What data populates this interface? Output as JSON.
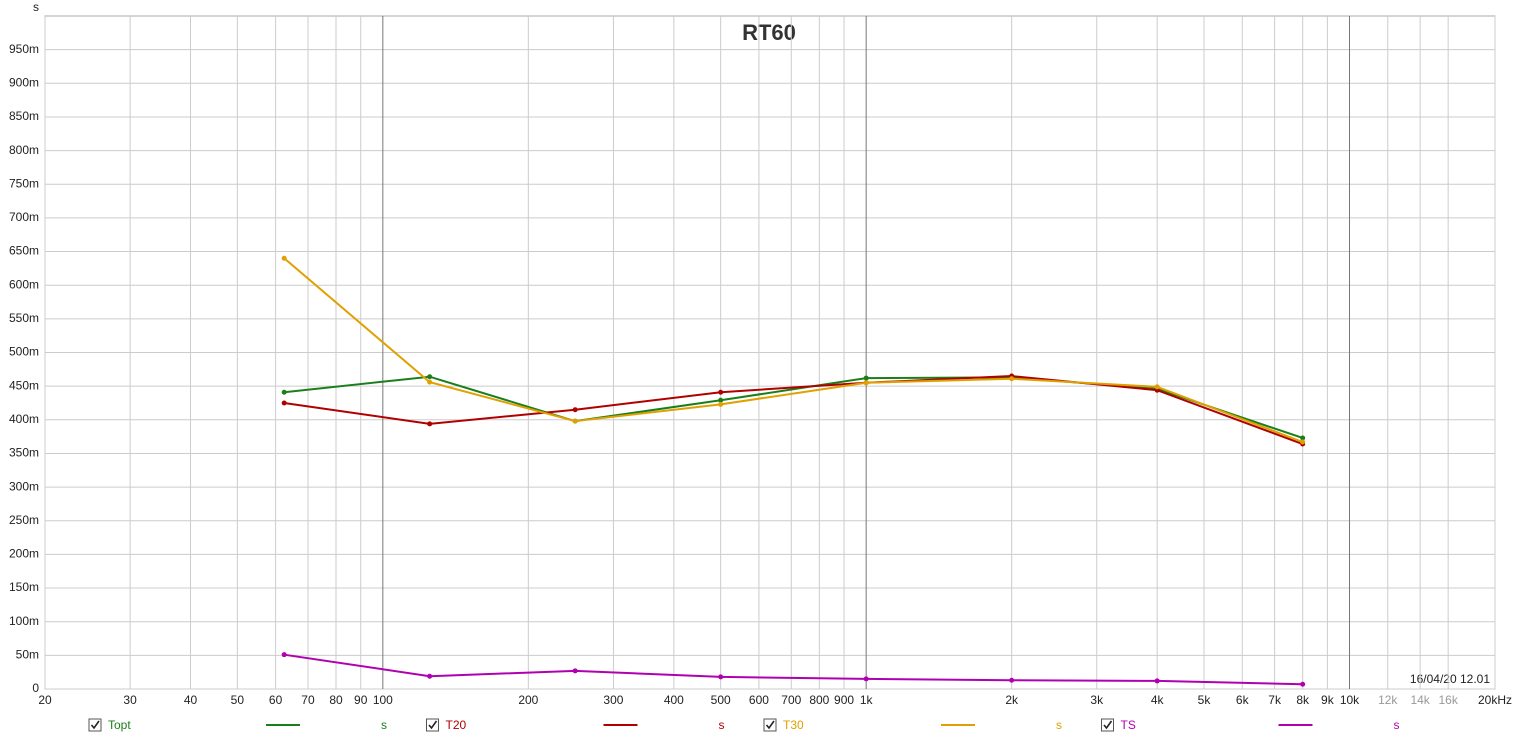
{
  "chart_data": {
    "type": "line",
    "title": "RT60",
    "y_label": "s",
    "log_x": true,
    "grid": true,
    "annotation": "16/04/20 12.01",
    "x": [
      62.5,
      125,
      250,
      500,
      1000,
      2000,
      4000,
      8000
    ],
    "xlim": [
      20,
      20000
    ],
    "xticks": [
      20,
      30,
      40,
      50,
      60,
      70,
      80,
      90,
      100,
      200,
      300,
      400,
      500,
      600,
      700,
      800,
      900,
      {
        "value": 1000,
        "label": "1k"
      },
      {
        "value": 2000,
        "label": "2k"
      },
      {
        "value": 3000,
        "label": "3k"
      },
      {
        "value": 4000,
        "label": "4k"
      },
      {
        "value": 5000,
        "label": "5k"
      },
      {
        "value": 6000,
        "label": "6k"
      },
      {
        "value": 7000,
        "label": "7k"
      },
      {
        "value": 8000,
        "label": "8k"
      },
      {
        "value": 9000,
        "label": "9k"
      },
      {
        "value": 10000,
        "label": "10k"
      },
      {
        "value": 12000,
        "label": "12k"
      },
      {
        "value": 14000,
        "label": "14k"
      },
      {
        "value": 16000,
        "label": "16k"
      },
      {
        "value": 20000,
        "label": "20kHz"
      }
    ],
    "ylim": [
      0,
      1.0
    ],
    "yticks": [
      0,
      {
        "value": 0.05,
        "label": "50m"
      },
      {
        "value": 0.1,
        "label": "100m"
      },
      {
        "value": 0.15,
        "label": "150m"
      },
      {
        "value": 0.2,
        "label": "200m"
      },
      {
        "value": 0.25,
        "label": "250m"
      },
      {
        "value": 0.3,
        "label": "300m"
      },
      {
        "value": 0.35,
        "label": "350m"
      },
      {
        "value": 0.4,
        "label": "400m"
      },
      {
        "value": 0.45,
        "label": "450m"
      },
      {
        "value": 0.5,
        "label": "500m"
      },
      {
        "value": 0.55,
        "label": "550m"
      },
      {
        "value": 0.6,
        "label": "600m"
      },
      {
        "value": 0.65,
        "label": "650m"
      },
      {
        "value": 0.7,
        "label": "700m"
      },
      {
        "value": 0.75,
        "label": "750m"
      },
      {
        "value": 0.8,
        "label": "800m"
      },
      {
        "value": 0.85,
        "label": "850m"
      },
      {
        "value": 0.9,
        "label": "900m"
      },
      {
        "value": 0.95,
        "label": "950m"
      }
    ],
    "series": [
      {
        "name": "Topt",
        "color": "#1a7f1a",
        "values": [
          0.441,
          0.464,
          0.398,
          0.429,
          0.462,
          0.463,
          0.446,
          0.373
        ]
      },
      {
        "name": "T20",
        "color": "#b00000",
        "values": [
          0.425,
          0.394,
          0.415,
          0.441,
          0.455,
          0.465,
          0.444,
          0.364
        ]
      },
      {
        "name": "T30",
        "color": "#e0a000",
        "values": [
          0.64,
          0.456,
          0.398,
          0.423,
          0.455,
          0.461,
          0.449,
          0.367
        ]
      },
      {
        "name": "TS",
        "color": "#b000b0",
        "values": [
          0.051,
          0.019,
          0.027,
          0.018,
          0.015,
          0.013,
          0.012,
          0.007
        ]
      }
    ]
  }
}
